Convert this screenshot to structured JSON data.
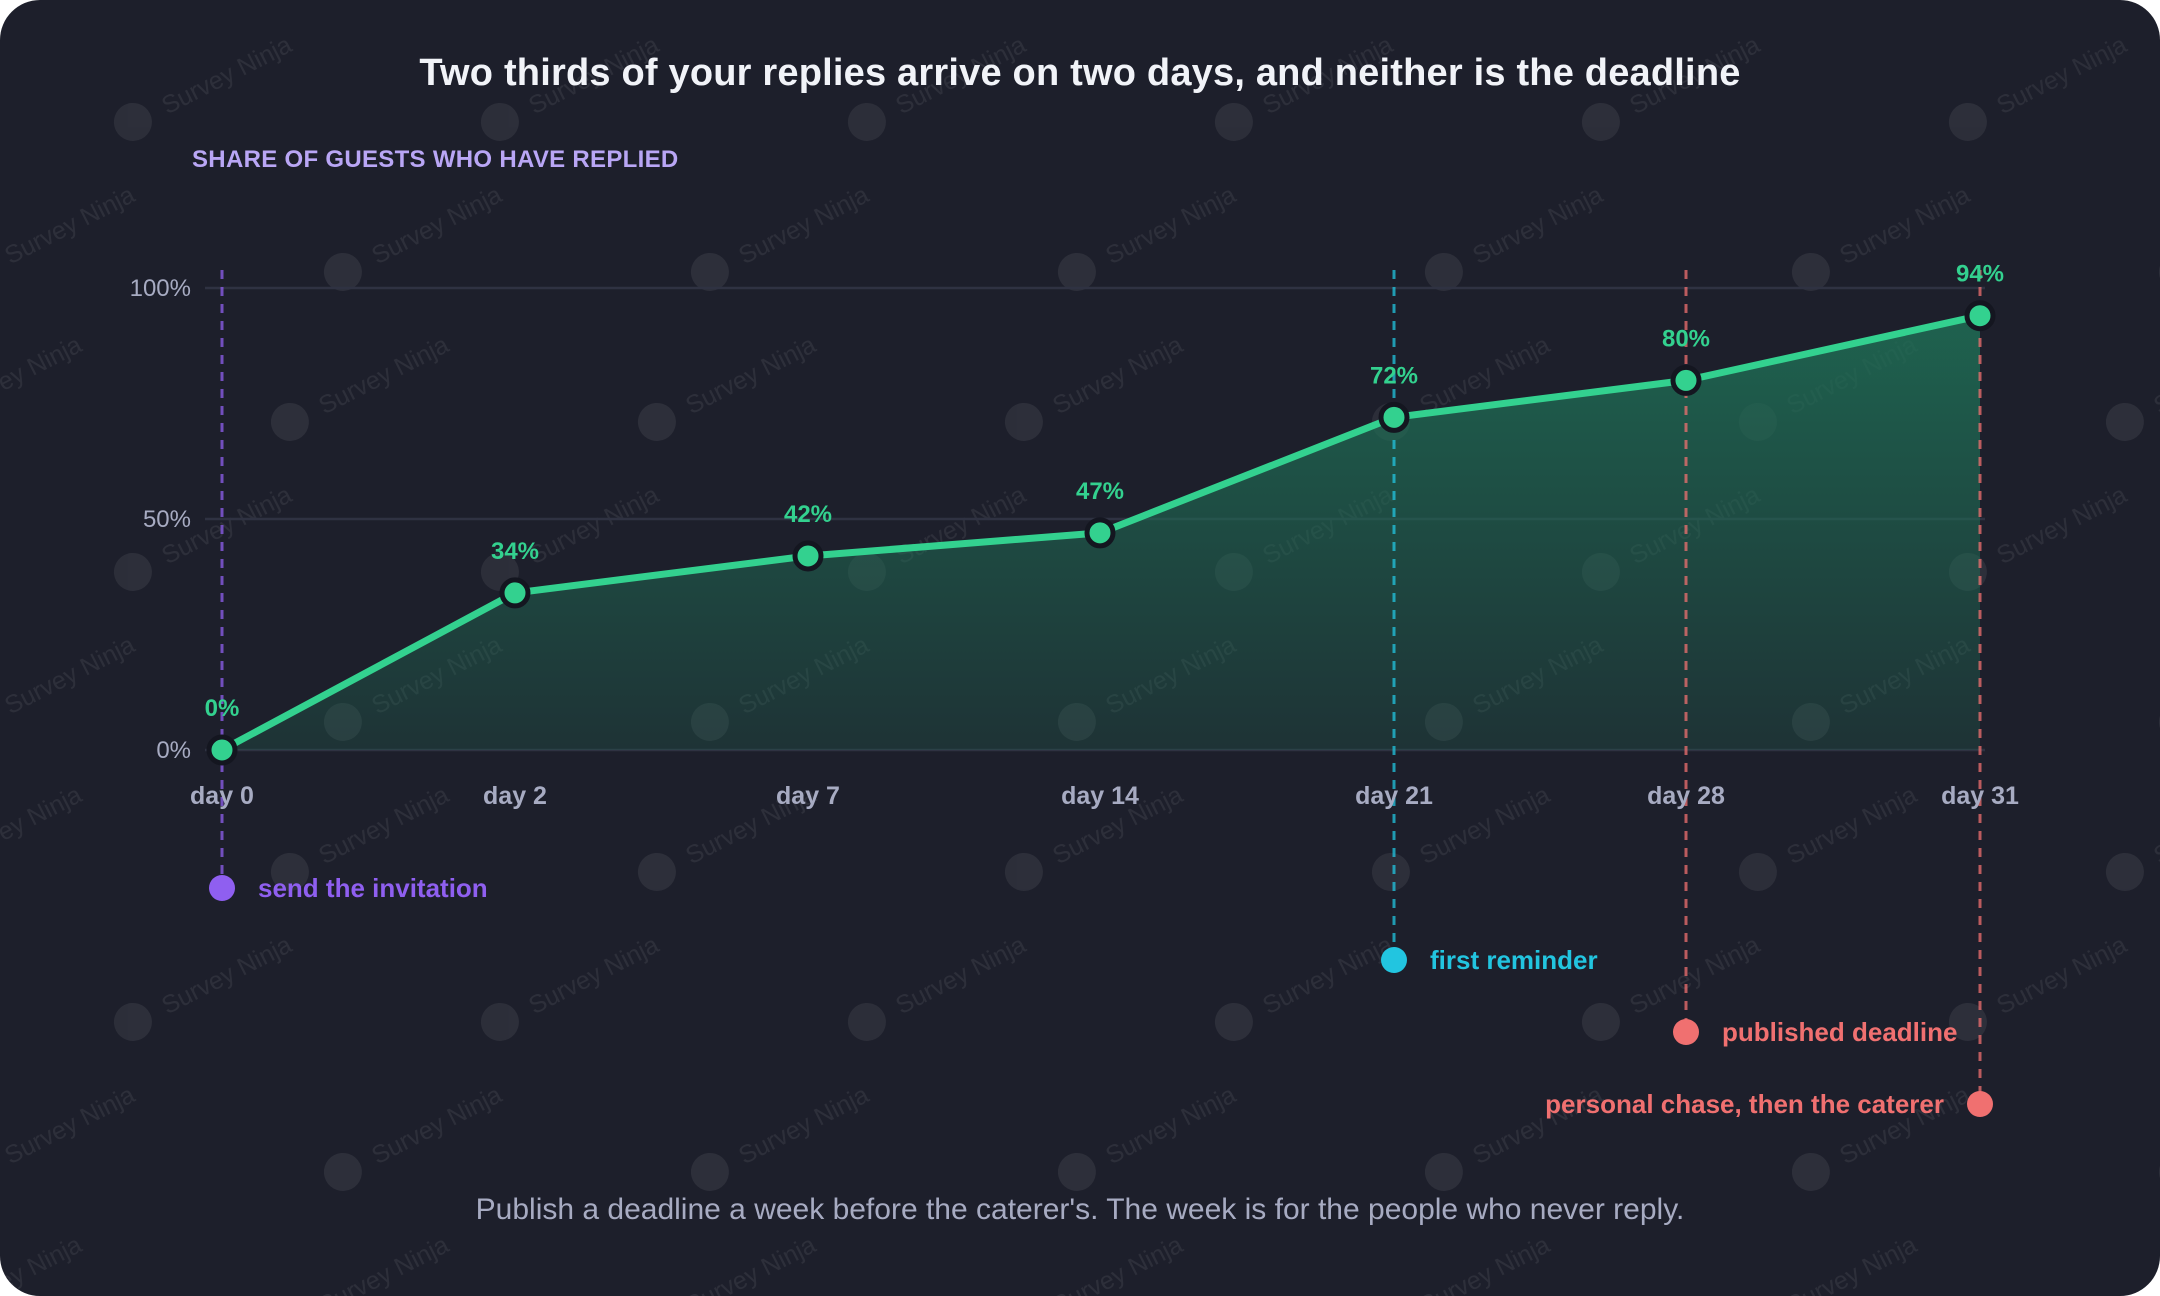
{
  "chart_title": "Two thirds of your replies arrive on two days, and neither is the deadline",
  "footnote": "Publish a deadline a week before the caterer's. The week is for the people who never reply.",
  "watermark": "Survey Ninja",
  "colors": {
    "background": "#1d1f2b",
    "line": "#33d18f",
    "area_top": "#1f6e55",
    "grid": "#2f3242",
    "tick_text": "#a7abc2",
    "data_label": "#33d18f",
    "invite": "#8f5ff0",
    "reminder": "#22c5e0",
    "deadline": "#f07070"
  },
  "chart_data": {
    "type": "line",
    "title": "Two thirds of your replies arrive on two days, and neither is the deadline",
    "ylabel": "SHARE OF GUESTS WHO HAVE REPLIED",
    "xlabel": "",
    "categories": [
      "day 0",
      "day 2",
      "day 7",
      "day 14",
      "day 21",
      "day 28",
      "day 31"
    ],
    "values": [
      0,
      34,
      42,
      47,
      72,
      80,
      94
    ],
    "data_labels": [
      "0%",
      "34%",
      "42%",
      "47%",
      "72%",
      "80%",
      "94%"
    ],
    "ylim": [
      0,
      100
    ],
    "yticks": [
      {
        "value": 0,
        "label": "0%"
      },
      {
        "value": 50,
        "label": "50%"
      },
      {
        "value": 100,
        "label": "100%"
      }
    ],
    "grid": true,
    "area_fill": true,
    "annotations": [
      {
        "index": 0,
        "label": "send the invitation",
        "color": "#8f5ff0",
        "row": 0,
        "text_side": "right"
      },
      {
        "index": 4,
        "label": "first reminder",
        "color": "#22c5e0",
        "row": 1,
        "text_side": "right"
      },
      {
        "index": 5,
        "label": "published deadline",
        "color": "#f07070",
        "row": 2,
        "text_side": "right"
      },
      {
        "index": 6,
        "label": "personal chase, then the caterer",
        "color": "#f07070",
        "row": 3,
        "text_side": "left"
      }
    ]
  }
}
